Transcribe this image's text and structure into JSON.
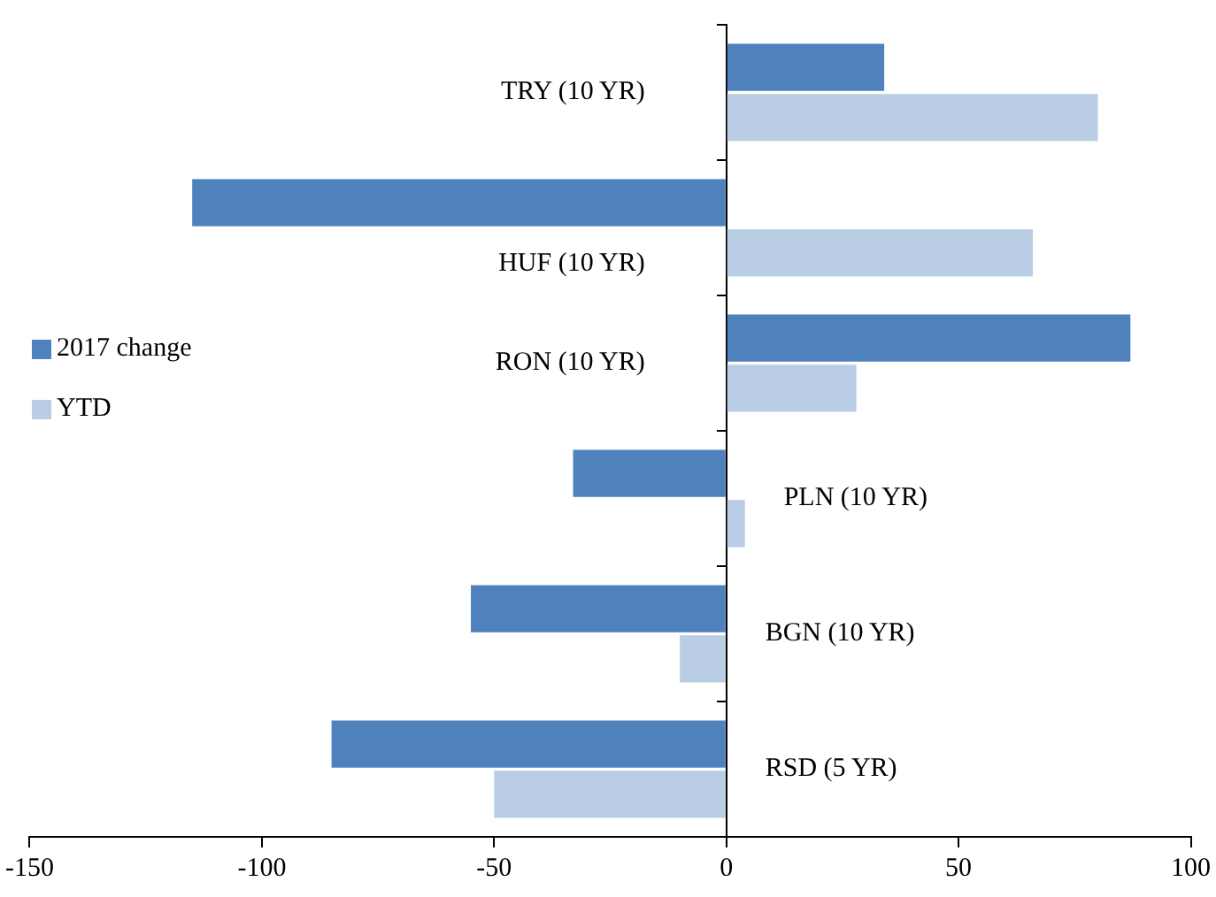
{
  "chart_data": {
    "type": "bar",
    "orientation": "horizontal",
    "categories": [
      "TRY (10 YR)",
      "HUF (10 YR)",
      "RON (10 YR)",
      "PLN (10 YR)",
      "BGN (10 YR)",
      "RSD (5 YR)"
    ],
    "series": [
      {
        "name": "2017 change",
        "color": "#4f81bd",
        "values": [
          34,
          -115,
          87,
          -33,
          -55,
          -85
        ]
      },
      {
        "name": "YTD",
        "color": "#b9cde5",
        "values": [
          80,
          66,
          28,
          4,
          -10,
          -50
        ]
      }
    ],
    "xlim": [
      -150,
      100
    ],
    "xticks": [
      -150,
      -100,
      -50,
      0,
      50,
      100
    ],
    "grid": false,
    "legend": "left",
    "tick_labels": "x"
  }
}
